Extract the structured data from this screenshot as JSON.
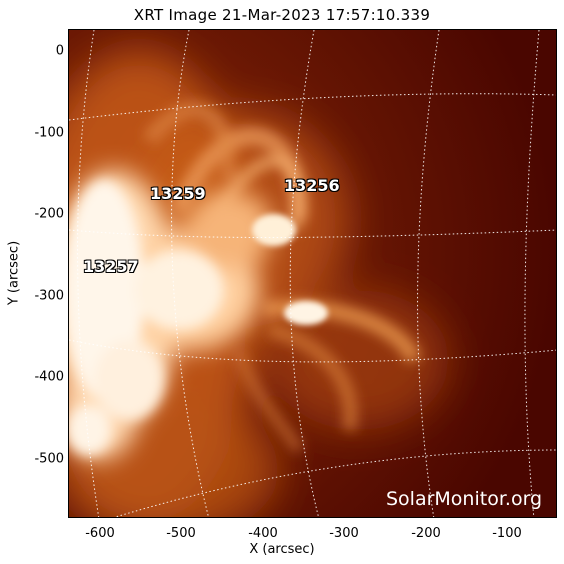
{
  "title": "XRT Image 21-Mar-2023 17:57:10.339",
  "axes": {
    "xlabel": "X (arcsec)",
    "ylabel": "Y (arcsec)",
    "x_ticks": [
      "-600",
      "-500",
      "-400",
      "-300",
      "-200",
      "-100"
    ],
    "y_ticks": [
      "0",
      "-100",
      "-200",
      "-300",
      "-400",
      "-500"
    ],
    "xlim": [
      -635,
      -35
    ],
    "ylim": [
      -575,
      25
    ]
  },
  "active_regions": [
    {
      "label": "13259"
    },
    {
      "label": "13256"
    },
    {
      "label": "13257"
    }
  ],
  "watermark": "SolarMonitor.org",
  "colors": {
    "background_dark": "#4a0600",
    "corona_mid": "#b84a10",
    "corona_bright": "#ffe8cc",
    "grid": "#ffffff"
  }
}
